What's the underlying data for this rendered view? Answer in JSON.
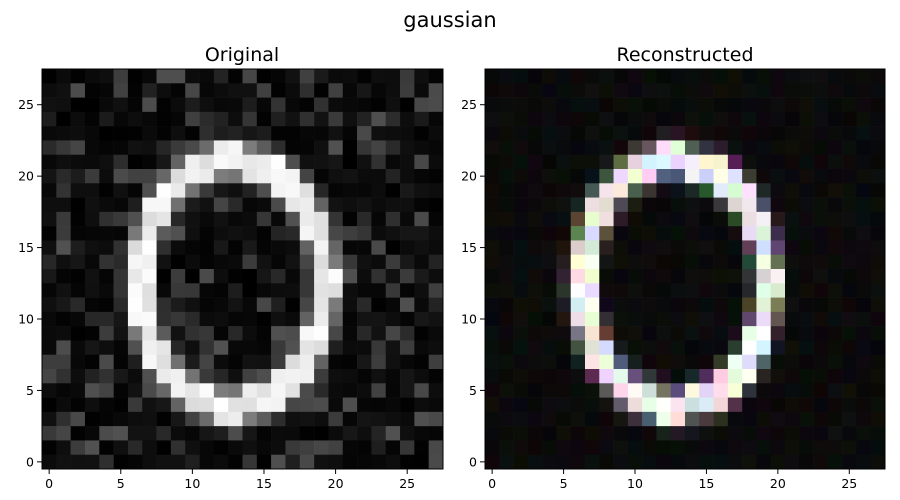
{
  "figure": {
    "suptitle": "gaussian"
  },
  "chart_data": [
    {
      "type": "heatmap",
      "title": "Original",
      "colormap": "gray",
      "grid": false,
      "xlim": [
        -0.5,
        27.5
      ],
      "ylim": [
        27.5,
        -0.5
      ],
      "x_ticks": [
        0,
        5,
        10,
        15,
        20,
        25
      ],
      "y_ticks": [
        0,
        5,
        10,
        15,
        20,
        25
      ],
      "content": "noisy handwritten digit '0' on dark background"
    },
    {
      "type": "heatmap",
      "title": "Reconstructed",
      "colormap": "rgb",
      "grid": false,
      "xlim": [
        -0.5,
        27.5
      ],
      "ylim": [
        27.5,
        -0.5
      ],
      "x_ticks": [
        0,
        5,
        10,
        15,
        20,
        25
      ],
      "y_ticks": [
        0,
        5,
        10,
        15,
        20,
        25
      ],
      "content": "reconstructed digit '0' with slight color noise"
    }
  ]
}
